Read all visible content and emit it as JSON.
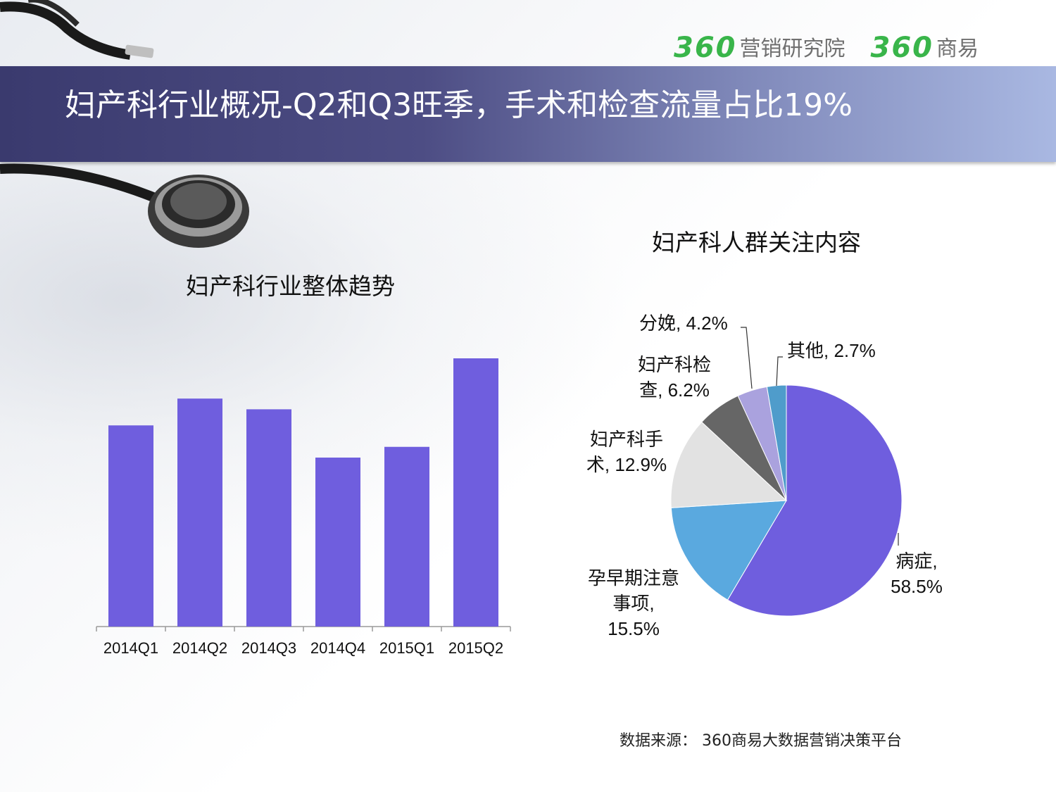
{
  "header": {
    "logo_left_num": "360",
    "logo_left_text": "营销研究院",
    "logo_right_num": "360",
    "logo_right_text": "商易",
    "brand_color": "#39b54a"
  },
  "title": "妇产科行业概况-Q2和Q3旺季，手术和检查流量占比19%",
  "source": "数据来源：  360商易大数据营销决策平台",
  "chart_data": [
    {
      "type": "bar",
      "title": "妇产科行业整体趋势",
      "categories": [
        "2014Q1",
        "2014Q2",
        "2014Q3",
        "2014Q4",
        "2015Q1",
        "2015Q2"
      ],
      "values": [
        75,
        85,
        81,
        63,
        67,
        100
      ],
      "ylim": [
        0,
        100
      ],
      "color": "#6f5ede",
      "grid": false,
      "yaxis_labels": false
    },
    {
      "type": "pie",
      "title": "妇产科人群关注内容",
      "slices": [
        {
          "label_lines": [
            "病症,",
            "58.5%"
          ],
          "value": 58.5,
          "color": "#6f5ede"
        },
        {
          "label_lines": [
            "孕早期注意",
            "事项,",
            "15.5%"
          ],
          "value": 15.5,
          "color": "#5aa9df"
        },
        {
          "label_lines": [
            "妇产科手",
            "术, 12.9%"
          ],
          "value": 12.9,
          "color": "#e2e2e2"
        },
        {
          "label_lines": [
            "妇产科检",
            "查, 6.2%"
          ],
          "value": 6.2,
          "color": "#666666"
        },
        {
          "label_lines": [
            "分娩, 4.2%"
          ],
          "value": 4.2,
          "color": "#aaa2de"
        },
        {
          "label_lines": [
            "其他, 2.7%"
          ],
          "value": 2.7,
          "color": "#4f9ccb"
        }
      ]
    }
  ]
}
